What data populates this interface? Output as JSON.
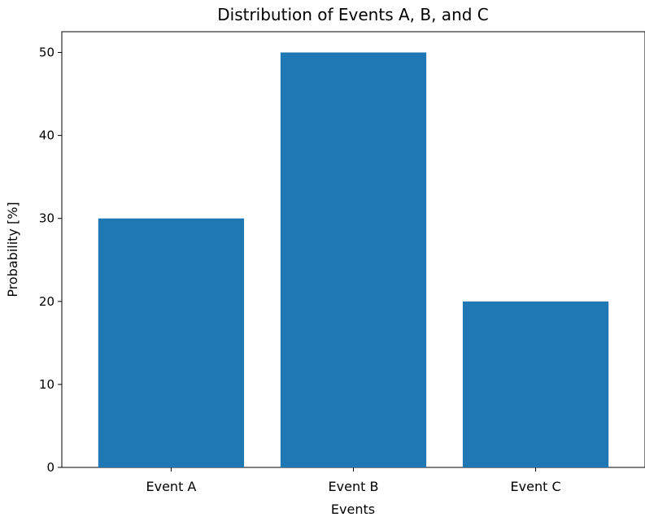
{
  "chart_data": {
    "type": "bar",
    "title": "Distribution of Events A, B, and C",
    "xlabel": "Events",
    "ylabel": "Probability [%]",
    "categories": [
      "Event A",
      "Event B",
      "Event C"
    ],
    "values": [
      30,
      50,
      20
    ],
    "ylim": [
      0,
      52.5
    ],
    "yticks": [
      0,
      10,
      20,
      30,
      40,
      50
    ],
    "grid": false,
    "bar_color": "#1f77b4"
  }
}
